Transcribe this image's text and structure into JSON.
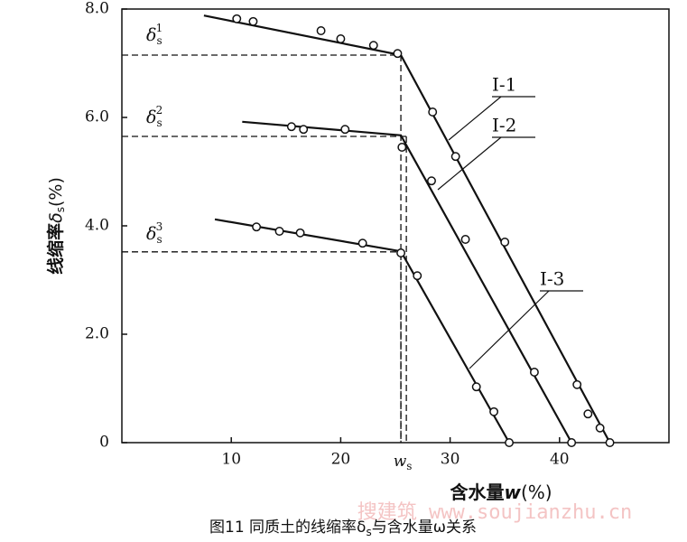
{
  "chart_data": {
    "type": "line",
    "y_label": [
      "线缩率",
      "δ",
      "s",
      "(%)"
    ],
    "x_label": [
      "含水量",
      "w",
      "(%)"
    ],
    "ws_label": [
      "w",
      "s"
    ],
    "caption": [
      "图11 同质土的线缩率δ",
      "s",
      "与含水量ω关系"
    ],
    "watermark": "搜建筑 www.soujianzhu.cn",
    "xlim": [
      0,
      50
    ],
    "ylim": [
      0,
      8
    ],
    "xticks": [
      10,
      20,
      30,
      40
    ],
    "yticks": [
      0,
      {
        "value": 2,
        "label": "2.0"
      },
      {
        "value": 4,
        "label": "4.0"
      },
      {
        "value": 6,
        "label": "6.0"
      },
      {
        "value": 8,
        "label": "8.0"
      }
    ],
    "color": "#111111",
    "series": [
      {
        "name": "Ⅰ-1",
        "x": [
          10.5,
          12.0,
          18.2,
          20.0,
          23.0,
          25.2,
          28.4,
          30.5,
          35.0,
          41.6,
          42.6,
          43.7,
          44.6
        ],
        "values": [
          7.82,
          7.77,
          7.6,
          7.45,
          7.33,
          7.18,
          6.1,
          5.28,
          3.7,
          1.07,
          0.53,
          0.27,
          0
        ],
        "fit_x": [
          7.5,
          25.5,
          44.6
        ],
        "fit_y": [
          7.88,
          7.15,
          0
        ],
        "limit": {
          "x": 25.5,
          "y": 7.15,
          "label": [
            "δ",
            "s",
            "1"
          ]
        }
      },
      {
        "name": "Ⅰ-2",
        "x": [
          15.5,
          16.6,
          20.4,
          25.6,
          28.3,
          31.4,
          37.7,
          41.1
        ],
        "values": [
          5.83,
          5.78,
          5.78,
          5.45,
          4.83,
          3.75,
          1.3,
          0
        ],
        "fit_x": [
          11.0,
          25.5,
          41.1
        ],
        "fit_y": [
          5.92,
          5.67,
          0
        ],
        "limit": {
          "x": 26.0,
          "y": 5.65,
          "label": [
            "δ",
            "s",
            "2"
          ]
        }
      },
      {
        "name": "Ⅰ-3",
        "x": [
          12.3,
          14.4,
          16.3,
          22.0,
          25.5,
          27.0,
          32.4,
          34.0,
          35.4
        ],
        "values": [
          3.98,
          3.9,
          3.87,
          3.68,
          3.5,
          3.08,
          1.03,
          0.57,
          0
        ],
        "fit_x": [
          8.5,
          25.5,
          35.4
        ],
        "fit_y": [
          4.12,
          3.53,
          0
        ],
        "limit": {
          "x": 25.5,
          "y": 3.52,
          "label": [
            "δ",
            "s",
            "3"
          ]
        }
      }
    ]
  }
}
